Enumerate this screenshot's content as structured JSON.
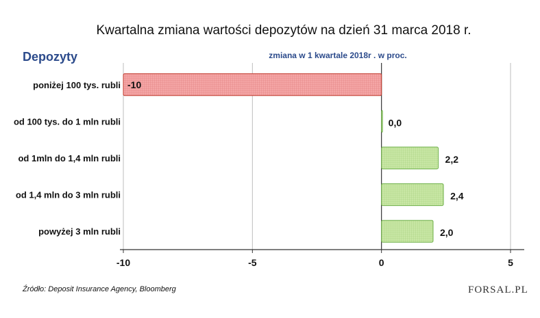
{
  "title": "Kwartalna zmiana wartości depozytów na dzień 31 marca 2018 r.",
  "section_label": "Depozyty",
  "subtitle": "zmiana w 1 kwartale 2018r . w proc.",
  "source": "Źródło: Deposit Insurance Agency, Bloomberg",
  "logo": {
    "text": "FORSAL.PL"
  },
  "colors": {
    "negative_fill": "#f4a6a6",
    "negative_stroke": "#c0392b",
    "positive_fill": "#c9e7a6",
    "positive_stroke": "#6fb04a",
    "title_blue": "#2b4a8b"
  },
  "chart_data": {
    "type": "bar",
    "orientation": "horizontal",
    "categories": [
      "poniżej 100 tys. rubli",
      "od 100 tys. do 1 mln rubli",
      "od 1mln do 1,4 mln rubli",
      "od 1,4 mln do 3 mln rubli",
      "powyżej 3 mln rubli"
    ],
    "values": [
      -10,
      0.0,
      2.2,
      2.4,
      2.0
    ],
    "data_labels": [
      "-10",
      "0,0",
      "2,2",
      "2,4",
      "2,0"
    ],
    "xlim": [
      -10,
      5
    ],
    "xticks": [
      -10,
      -5,
      0,
      5
    ],
    "xtick_labels": [
      "-10",
      "-5",
      "0",
      "5"
    ],
    "grid": true
  }
}
